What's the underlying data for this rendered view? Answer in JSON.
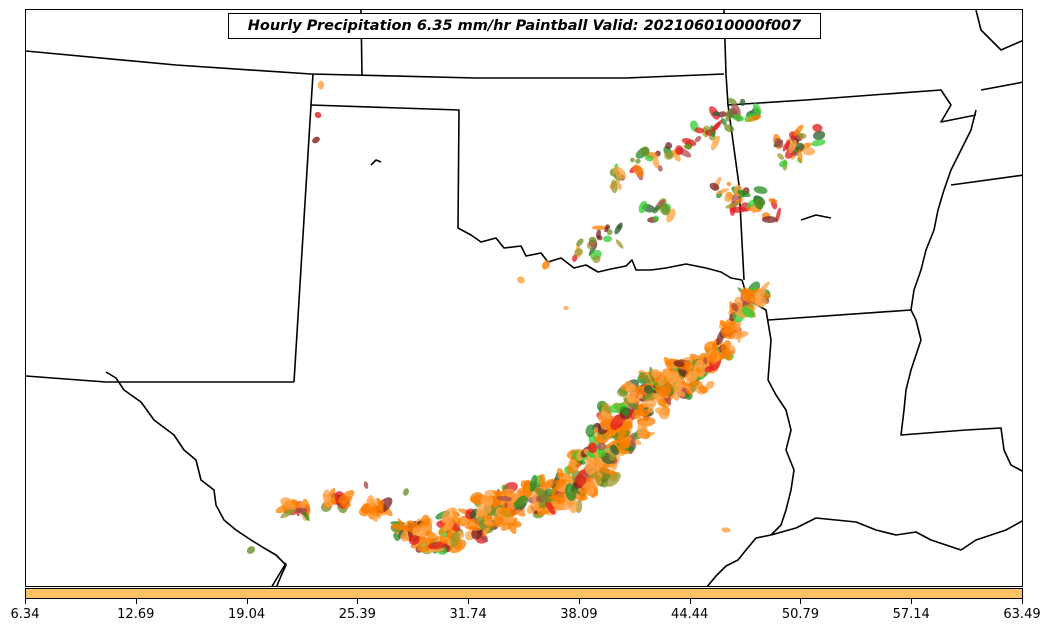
{
  "title": "Hourly Precipitation 6.35 mm/hr Paintball Valid: 202106010000f007",
  "colorbar": {
    "color": "#ffc266",
    "ticks": [
      "6.34",
      "12.69",
      "19.04",
      "25.39",
      "31.74",
      "38.09",
      "44.44",
      "50.79",
      "57.14",
      "63.49"
    ]
  },
  "paint_colors": [
    "#7a1f1f",
    "#a94c4c",
    "#e31a1c",
    "#ff7f00",
    "#ffa040",
    "#6b8e23",
    "#9a9a2a",
    "#228b22",
    "#32cd32",
    "#2e5e2e"
  ]
}
